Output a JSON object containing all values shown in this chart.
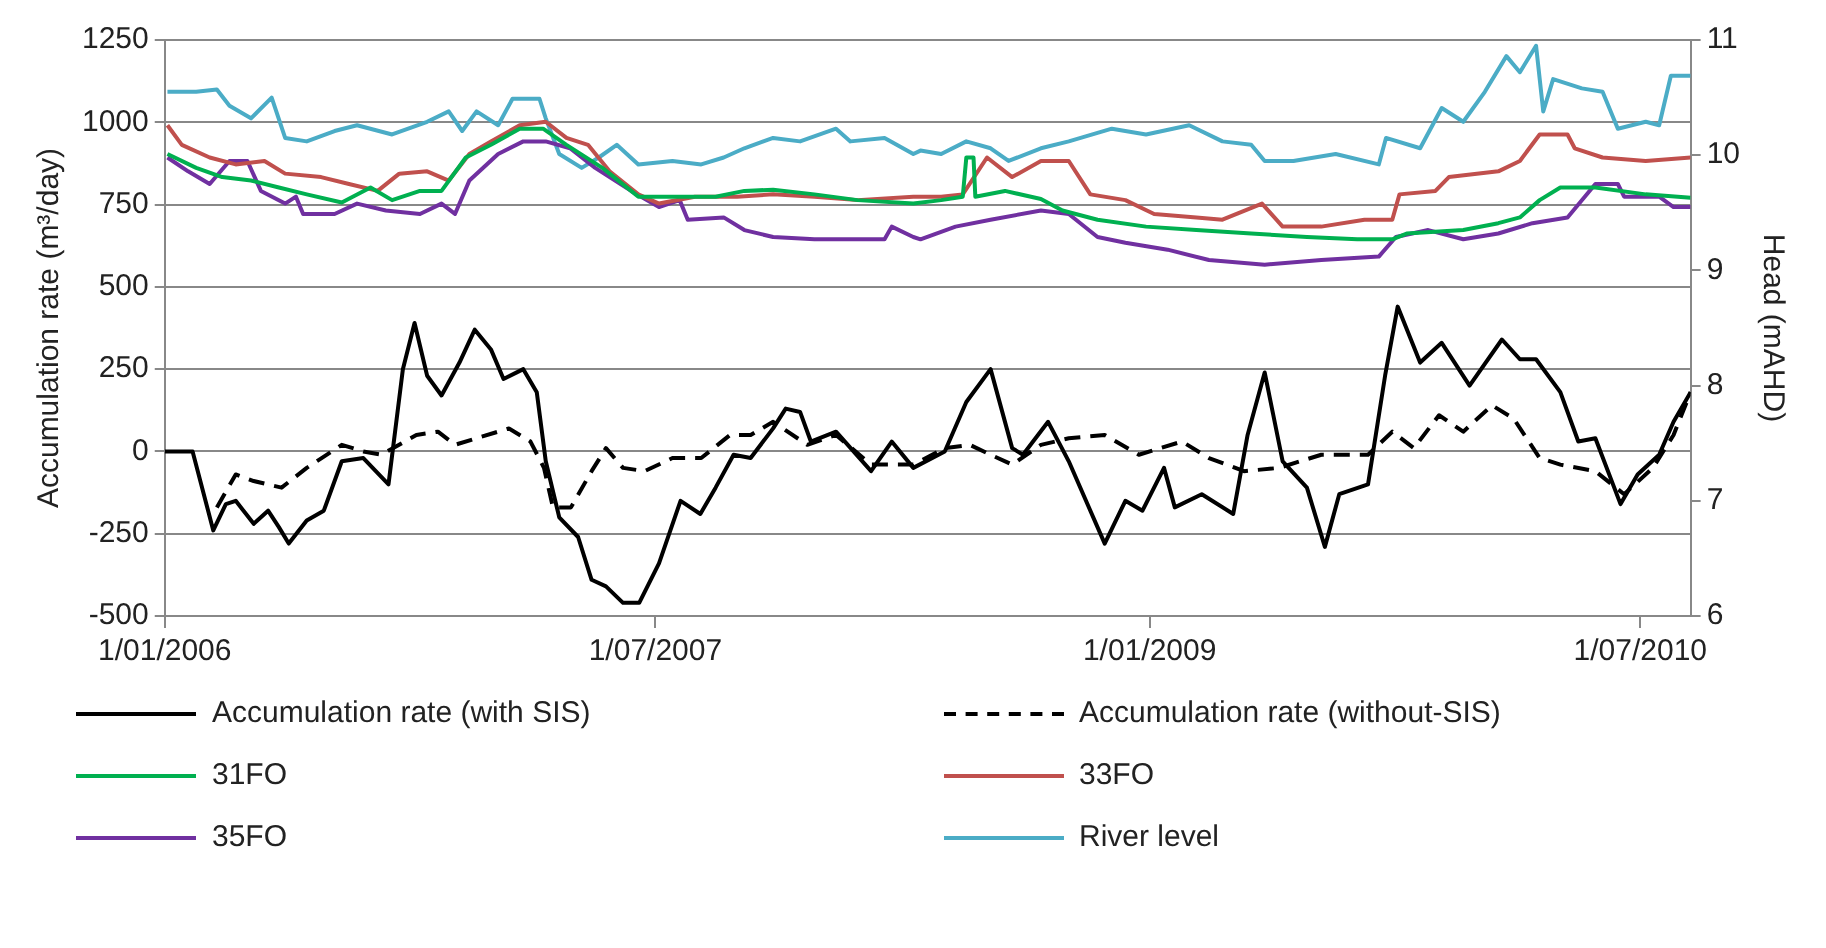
{
  "chart_data": {
    "type": "line",
    "ylabel": "Accumulation rate (m³/day)",
    "y2label": "Head (mAHD)",
    "xlim": [
      "2006-01-01",
      "2010-08-26"
    ],
    "xticks": [
      {
        "value": "2006-01-01",
        "label": "1/01/2006"
      },
      {
        "value": "2007-07-01",
        "label": "1/07/2007"
      },
      {
        "value": "2009-01-01",
        "label": "1/01/2009"
      },
      {
        "value": "2010-07-01",
        "label": "1/07/2010"
      }
    ],
    "ylim": [
      -500,
      1250
    ],
    "yticks": [
      -500,
      -250,
      0,
      250,
      500,
      750,
      1000,
      1250
    ],
    "y2lim": [
      6,
      11
    ],
    "y2ticks": [
      6,
      7,
      8,
      9,
      10,
      11
    ],
    "grid": "y",
    "legend": "bottom",
    "marker": "none",
    "series": [
      {
        "name": "Accumulation rate (with SIS)",
        "color": "#000000",
        "line_style": "solid",
        "x": [
          "2006-01-01",
          "2006-02-01",
          "2006-02-24",
          "2006-03-10",
          "2006-03-21",
          "2006-04-10",
          "2006-04-26",
          "2006-05-08",
          "2006-05-19",
          "2006-06-08",
          "2006-06-27",
          "2006-07-17",
          "2006-08-10",
          "2006-09-07",
          "2006-09-23",
          "2006-10-06",
          "2006-10-20",
          "2006-11-05",
          "2006-11-25",
          "2006-12-12",
          "2006-12-30",
          "2007-01-13",
          "2007-02-04",
          "2007-02-19",
          "2007-03-01",
          "2007-03-16",
          "2007-04-06",
          "2007-04-21",
          "2007-05-07",
          "2007-05-26",
          "2007-06-13",
          "2007-07-05",
          "2007-07-29",
          "2007-08-20",
          "2007-09-06",
          "2007-09-26",
          "2007-10-15",
          "2007-11-09",
          "2007-11-23",
          "2007-12-09",
          "2007-12-21",
          "2008-01-18",
          "2008-02-26",
          "2008-03-20",
          "2008-04-13",
          "2008-05-18",
          "2008-06-11",
          "2008-07-08",
          "2008-08-01",
          "2008-08-13",
          "2008-09-10",
          "2008-10-03",
          "2008-11-12",
          "2008-12-05",
          "2008-12-24",
          "2009-01-17",
          "2009-01-29",
          "2009-02-28",
          "2009-04-04",
          "2009-04-20",
          "2009-05-09",
          "2009-05-29",
          "2009-06-25",
          "2009-07-15",
          "2009-07-31",
          "2009-09-01",
          "2009-09-20",
          "2009-10-04",
          "2009-10-29",
          "2009-11-22",
          "2009-12-23",
          "2010-01-28",
          "2010-02-17",
          "2010-03-07",
          "2010-04-03",
          "2010-04-23",
          "2010-05-12",
          "2010-06-09",
          "2010-06-28",
          "2010-07-22",
          "2010-08-07",
          "2010-08-26"
        ],
        "values": [
          0,
          0,
          -240,
          -160,
          -150,
          -220,
          -180,
          -230,
          -280,
          -210,
          -180,
          -30,
          -20,
          -100,
          250,
          390,
          230,
          170,
          270,
          370,
          310,
          220,
          250,
          180,
          -30,
          -200,
          -260,
          -390,
          -410,
          -460,
          -460,
          -340,
          -150,
          -190,
          -110,
          -10,
          -20,
          70,
          130,
          120,
          30,
          60,
          -60,
          30,
          -50,
          0,
          150,
          250,
          10,
          -10,
          90,
          -30,
          -280,
          -150,
          -180,
          -50,
          -170,
          -130,
          -190,
          50,
          240,
          -30,
          -110,
          -290,
          -130,
          -100,
          230,
          440,
          270,
          330,
          200,
          340,
          280,
          280,
          180,
          30,
          40,
          -160,
          -70,
          -10,
          90,
          180
        ]
      },
      {
        "name": "Accumulation rate (without-SIS)",
        "color": "#000000",
        "line_style": "dashed",
        "x": [
          "2006-02-28",
          "2006-03-21",
          "2006-04-10",
          "2006-05-11",
          "2006-06-08",
          "2006-07-17",
          "2006-08-10",
          "2006-08-30",
          "2006-10-08",
          "2006-11-01",
          "2006-11-20",
          "2006-12-14",
          "2007-01-19",
          "2007-02-12",
          "2007-02-27",
          "2007-03-09",
          "2007-03-29",
          "2007-04-21",
          "2007-05-07",
          "2007-05-26",
          "2007-06-19",
          "2007-07-20",
          "2007-08-21",
          "2007-09-22",
          "2007-10-15",
          "2007-11-09",
          "2007-12-17",
          "2008-01-18",
          "2008-02-26",
          "2008-04-13",
          "2008-05-18",
          "2008-06-15",
          "2008-07-08",
          "2008-08-01",
          "2008-09-02",
          "2008-10-03",
          "2008-11-12",
          "2008-12-20",
          "2009-02-06",
          "2009-03-08",
          "2009-04-16",
          "2009-05-25",
          "2009-07-11",
          "2009-09-01",
          "2009-09-28",
          "2009-10-22",
          "2009-11-19",
          "2009-12-16",
          "2010-01-17",
          "2010-02-10",
          "2010-03-11",
          "2010-04-03",
          "2010-05-12",
          "2010-06-13",
          "2010-07-15",
          "2010-08-07",
          "2010-08-26"
        ],
        "values": [
          -170,
          -70,
          -90,
          -110,
          -50,
          20,
          0,
          -10,
          50,
          60,
          20,
          40,
          70,
          30,
          -50,
          -170,
          -170,
          -60,
          10,
          -50,
          -60,
          -20,
          -20,
          50,
          50,
          90,
          20,
          50,
          -40,
          -40,
          10,
          20,
          -10,
          -40,
          20,
          40,
          50,
          -10,
          30,
          -20,
          -60,
          -50,
          -10,
          -10,
          60,
          10,
          110,
          60,
          140,
          100,
          -20,
          -40,
          -60,
          -130,
          -50,
          50,
          180
        ]
      },
      {
        "name": "31FO",
        "color": "#00b050",
        "line_style": "solid",
        "axis": "y2",
        "x": [
          "2006-01-04",
          "2006-02-05",
          "2006-03-06",
          "2006-04-07",
          "2006-05-08",
          "2006-06-08",
          "2006-07-17",
          "2006-08-18",
          "2006-09-11",
          "2006-10-12",
          "2006-11-05",
          "2006-12-02",
          "2006-12-30",
          "2007-01-31",
          "2007-02-26",
          "2007-03-24",
          "2007-05-03",
          "2007-06-12",
          "2007-07-20",
          "2007-09-06",
          "2007-10-08",
          "2007-11-09",
          "2007-12-25",
          "2008-02-11",
          "2008-04-13",
          "2008-05-14",
          "2008-06-07",
          "2008-06-11",
          "2008-06-19",
          "2008-06-21",
          "2008-07-24",
          "2008-09-02",
          "2008-09-26",
          "2008-11-04",
          "2008-12-28",
          "2009-02-22",
          "2009-04-24",
          "2009-06-25",
          "2009-08-20",
          "2009-09-28",
          "2009-10-14",
          "2009-12-16",
          "2010-01-24",
          "2010-02-17",
          "2010-03-11",
          "2010-04-03",
          "2010-05-12",
          "2010-07-07",
          "2010-08-26"
        ],
        "values": [
          10.01,
          9.89,
          9.81,
          9.78,
          9.72,
          9.66,
          9.59,
          9.72,
          9.61,
          9.69,
          9.69,
          9.98,
          10.09,
          10.23,
          10.23,
          10.09,
          9.89,
          9.64,
          9.64,
          9.64,
          9.69,
          9.7,
          9.66,
          9.61,
          9.58,
          9.61,
          9.64,
          9.98,
          9.98,
          9.64,
          9.69,
          9.62,
          9.52,
          9.44,
          9.38,
          9.35,
          9.32,
          9.29,
          9.27,
          9.27,
          9.32,
          9.35,
          9.41,
          9.46,
          9.61,
          9.72,
          9.72,
          9.66,
          9.63
        ]
      },
      {
        "name": "33FO",
        "color": "#c0504d",
        "line_style": "solid",
        "axis": "y2",
        "x": [
          "2006-01-04",
          "2006-01-20",
          "2006-02-20",
          "2006-03-21",
          "2006-04-22",
          "2006-05-15",
          "2006-06-24",
          "2006-07-25",
          "2006-08-26",
          "2006-09-19",
          "2006-10-20",
          "2006-11-13",
          "2006-12-06",
          "2006-12-30",
          "2007-01-31",
          "2007-03-01",
          "2007-03-24",
          "2007-04-17",
          "2007-05-11",
          "2007-06-12",
          "2007-07-05",
          "2007-08-14",
          "2007-09-30",
          "2007-11-09",
          "2007-12-25",
          "2008-02-11",
          "2008-04-13",
          "2008-05-14",
          "2008-06-07",
          "2008-07-04",
          "2008-08-01",
          "2008-09-02",
          "2008-10-03",
          "2008-10-27",
          "2008-12-05",
          "2009-01-06",
          "2009-02-22",
          "2009-03-23",
          "2009-05-06",
          "2009-05-29",
          "2009-07-11",
          "2009-08-28",
          "2009-09-28",
          "2009-10-06",
          "2009-11-15",
          "2009-11-30",
          "2010-01-24",
          "2010-02-17",
          "2010-03-11",
          "2010-04-11",
          "2010-04-19",
          "2010-05-20",
          "2010-07-07",
          "2010-08-26"
        ],
        "values": [
          10.26,
          10.09,
          9.98,
          9.92,
          9.95,
          9.84,
          9.81,
          9.75,
          9.69,
          9.84,
          9.86,
          9.78,
          10.01,
          10.12,
          10.26,
          10.29,
          10.15,
          10.09,
          9.86,
          9.66,
          9.58,
          9.64,
          9.64,
          9.66,
          9.64,
          9.61,
          9.64,
          9.64,
          9.66,
          9.98,
          9.81,
          9.95,
          9.95,
          9.66,
          9.61,
          9.49,
          9.46,
          9.44,
          9.58,
          9.38,
          9.38,
          9.44,
          9.44,
          9.66,
          9.69,
          9.81,
          9.86,
          9.95,
          10.18,
          10.18,
          10.06,
          9.98,
          9.95,
          9.98
        ]
      },
      {
        "name": "35FO",
        "color": "#7030a0",
        "line_style": "solid",
        "axis": "y2",
        "x": [
          "2006-01-04",
          "2006-01-27",
          "2006-02-20",
          "2006-03-14",
          "2006-04-03",
          "2006-04-18",
          "2006-05-15",
          "2006-05-27",
          "2006-06-04",
          "2006-07-09",
          "2006-08-03",
          "2006-09-04",
          "2006-10-12",
          "2006-11-05",
          "2006-11-20",
          "2006-12-06",
          "2007-01-07",
          "2007-02-04",
          "2007-03-01",
          "2007-03-28",
          "2007-04-25",
          "2007-06-04",
          "2007-07-05",
          "2007-07-28",
          "2007-08-06",
          "2007-09-15",
          "2007-10-08",
          "2007-11-09",
          "2007-12-25",
          "2008-03-12",
          "2008-03-20",
          "2008-04-13",
          "2008-04-21",
          "2008-05-30",
          "2008-07-08",
          "2008-09-02",
          "2008-10-03",
          "2008-11-04",
          "2008-12-05",
          "2009-01-21",
          "2009-03-08",
          "2009-05-09",
          "2009-07-11",
          "2009-09-13",
          "2009-10-02",
          "2009-11-07",
          "2009-12-16",
          "2010-01-24",
          "2010-03-03",
          "2010-04-11",
          "2010-05-12",
          "2010-06-06",
          "2010-06-13",
          "2010-07-22",
          "2010-08-07",
          "2010-08-26"
        ],
        "values": [
          9.98,
          9.86,
          9.75,
          9.95,
          9.95,
          9.69,
          9.58,
          9.64,
          9.49,
          9.49,
          9.58,
          9.52,
          9.49,
          9.58,
          9.49,
          9.78,
          10.01,
          10.12,
          10.12,
          10.06,
          9.89,
          9.69,
          9.55,
          9.61,
          9.44,
          9.46,
          9.35,
          9.29,
          9.27,
          9.27,
          9.38,
          9.29,
          9.27,
          9.38,
          9.44,
          9.52,
          9.49,
          9.29,
          9.24,
          9.18,
          9.09,
          9.05,
          9.09,
          9.12,
          9.29,
          9.35,
          9.27,
          9.32,
          9.41,
          9.46,
          9.75,
          9.75,
          9.64,
          9.64,
          9.55,
          9.55
        ]
      },
      {
        "name": "River level",
        "color": "#4bacc6",
        "line_style": "solid",
        "axis": "y2",
        "x": [
          "2006-01-04",
          "2006-02-05",
          "2006-02-28",
          "2006-03-14",
          "2006-04-07",
          "2006-04-30",
          "2006-05-15",
          "2006-06-08",
          "2006-07-09",
          "2006-08-03",
          "2006-09-11",
          "2006-10-20",
          "2006-11-13",
          "2006-11-28",
          "2006-12-14",
          "2007-01-07",
          "2007-01-23",
          "2007-02-22",
          "2007-03-01",
          "2007-03-16",
          "2007-04-10",
          "2007-04-29",
          "2007-05-19",
          "2007-06-12",
          "2007-07-20",
          "2007-08-21",
          "2007-09-15",
          "2007-10-08",
          "2007-11-09",
          "2007-12-09",
          "2008-01-18",
          "2008-02-03",
          "2008-03-12",
          "2008-04-13",
          "2008-04-21",
          "2008-05-14",
          "2008-06-11",
          "2008-07-08",
          "2008-07-28",
          "2008-09-02",
          "2008-10-03",
          "2008-11-20",
          "2008-12-28",
          "2009-02-14",
          "2009-03-23",
          "2009-04-24",
          "2009-05-09",
          "2009-06-10",
          "2009-07-27",
          "2009-09-13",
          "2009-09-21",
          "2009-10-29",
          "2009-11-22",
          "2009-12-16",
          "2010-01-09",
          "2010-02-02",
          "2010-02-17",
          "2010-03-07",
          "2010-03-15",
          "2010-03-26",
          "2010-04-27",
          "2010-05-20",
          "2010-06-06",
          "2010-07-07",
          "2010-07-22",
          "2010-08-04",
          "2010-08-26"
        ],
        "values": [
          10.55,
          10.55,
          10.57,
          10.43,
          10.32,
          10.5,
          10.15,
          10.12,
          10.21,
          10.26,
          10.18,
          10.29,
          10.38,
          10.21,
          10.38,
          10.26,
          10.49,
          10.49,
          10.32,
          10.01,
          9.89,
          9.98,
          10.09,
          9.92,
          9.95,
          9.92,
          9.98,
          10.06,
          10.15,
          10.12,
          10.23,
          10.12,
          10.15,
          10.01,
          10.04,
          10.01,
          10.12,
          10.06,
          9.95,
          10.06,
          10.12,
          10.23,
          10.18,
          10.26,
          10.12,
          10.09,
          9.95,
          9.95,
          10.01,
          9.92,
          10.15,
          10.06,
          10.41,
          10.29,
          10.55,
          10.86,
          10.72,
          10.95,
          10.38,
          10.66,
          10.58,
          10.55,
          10.23,
          10.29,
          10.26,
          10.69,
          10.69
        ]
      }
    ]
  }
}
